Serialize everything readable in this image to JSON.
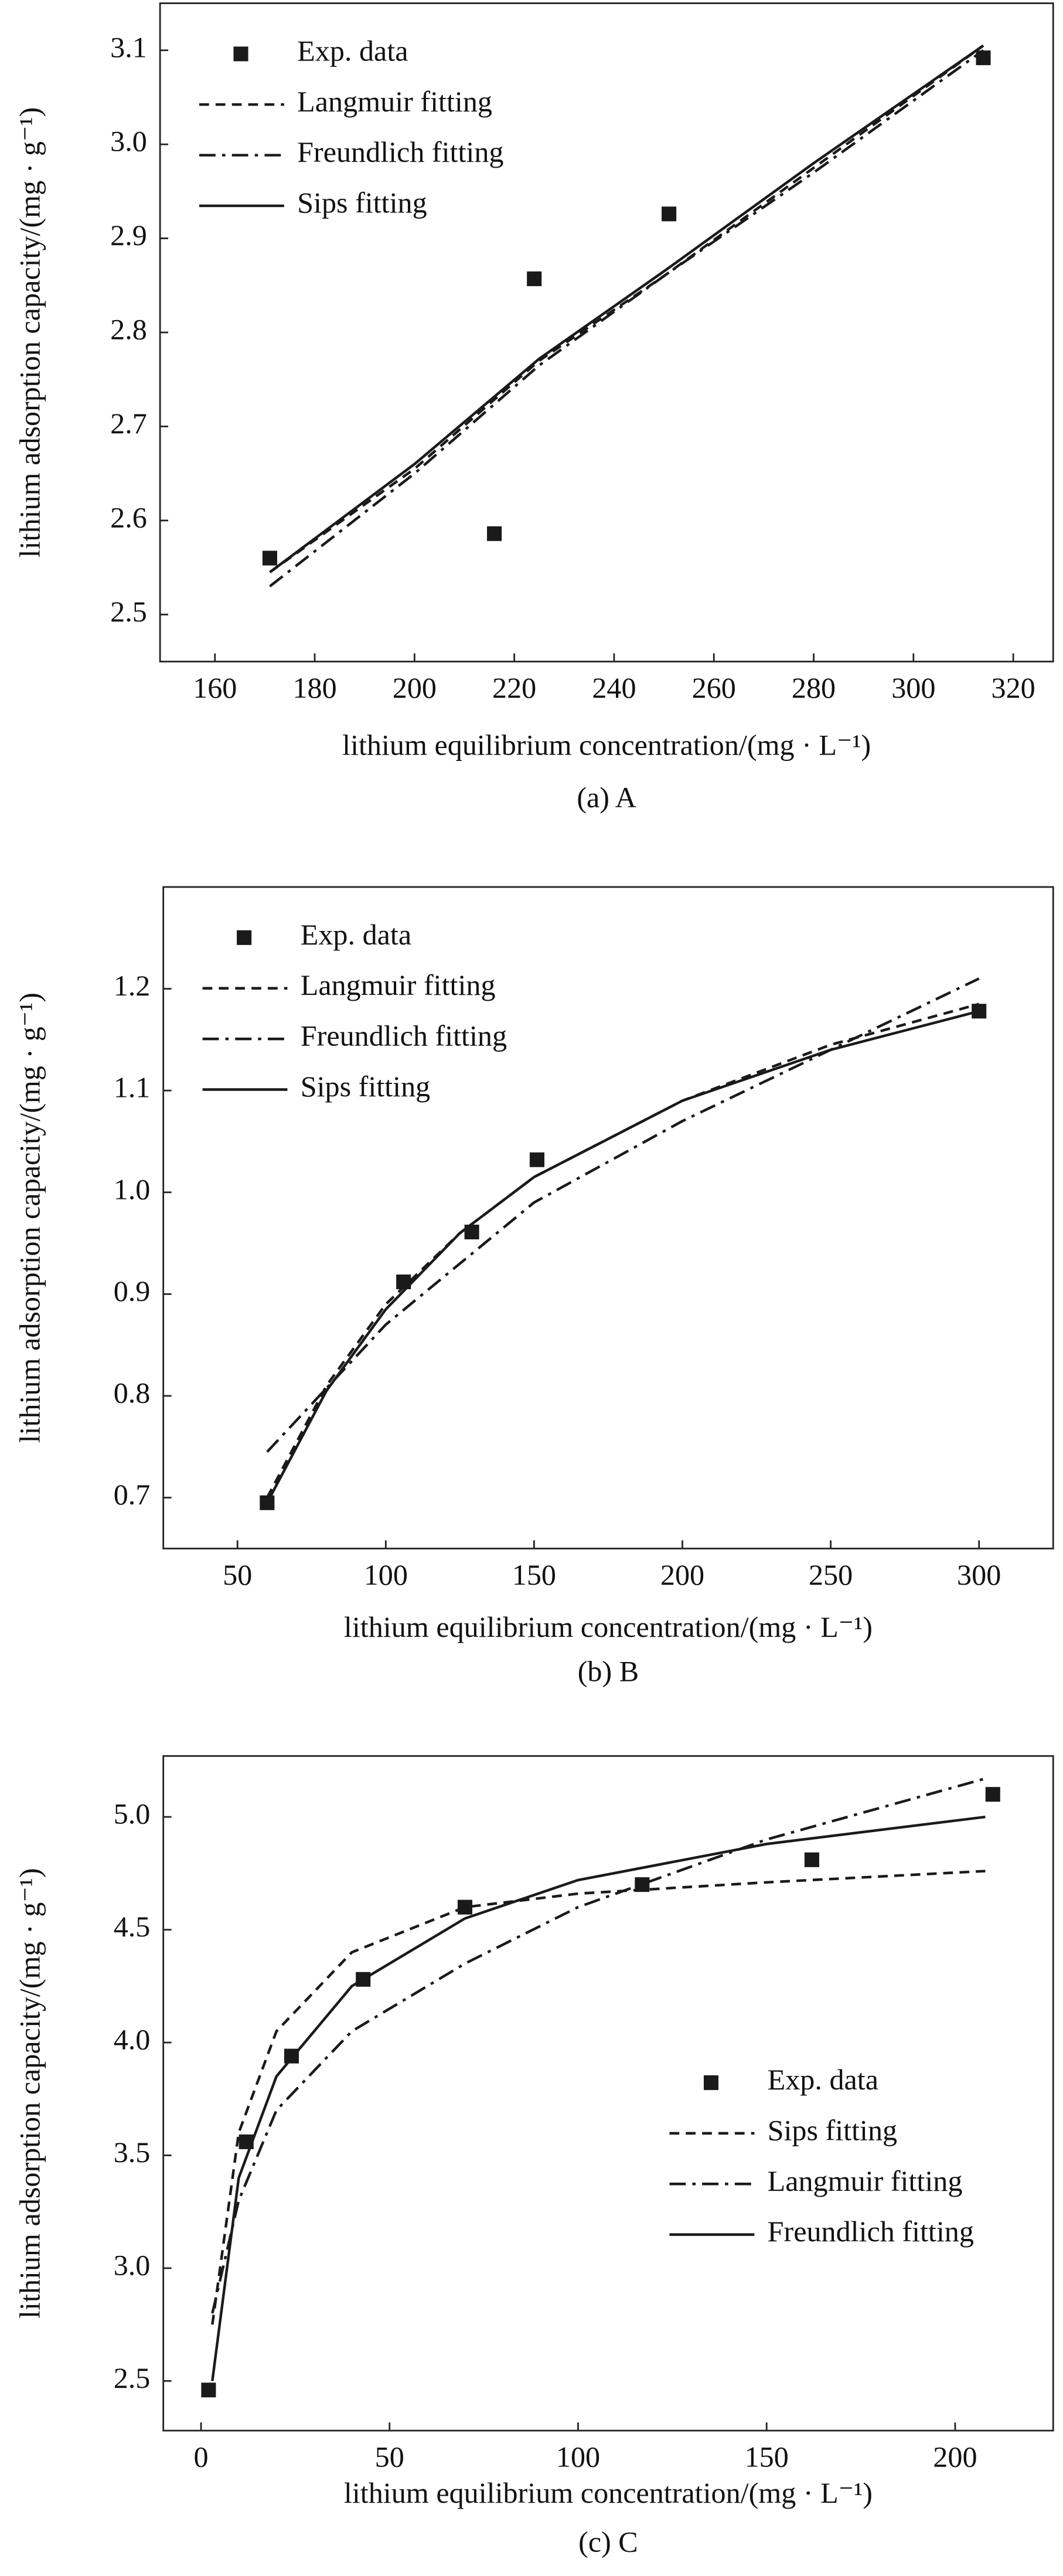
{
  "chart_data": [
    {
      "type": "scatter",
      "caption": "(a) A",
      "xlabel": "lithium equilibrium concentration/(mg · L⁻¹)",
      "ylabel": "lithium adsorption capacity/(mg · g⁻¹)",
      "xlim": [
        149,
        328
      ],
      "ylim": [
        2.45,
        3.15
      ],
      "xticks": [
        160,
        180,
        200,
        220,
        240,
        260,
        280,
        300,
        320
      ],
      "yticks": [
        2.5,
        2.6,
        2.7,
        2.8,
        2.9,
        {
          "value": 3,
          "label": "3.0"
        },
        3.1
      ],
      "legend": "upper left",
      "series": [
        {
          "name": "Exp. data",
          "marker": "square",
          "color": "#1a1a1a",
          "x": [
            171,
            216,
            224,
            251,
            314
          ],
          "values": [
            2.56,
            2.586,
            2.857,
            2.926,
            3.092
          ]
        },
        {
          "name": "Langmuir fitting",
          "dash": "dashed",
          "color": "#1a1a1a",
          "x": [
            171,
            200,
            225,
            250,
            280,
            314
          ],
          "values": [
            2.545,
            2.655,
            2.77,
            2.86,
            2.975,
            3.105
          ]
        },
        {
          "name": "Freundlich fitting",
          "dash": "dashdot",
          "color": "#1a1a1a",
          "x": [
            171,
            200,
            225,
            250,
            280,
            314
          ],
          "values": [
            2.53,
            2.65,
            2.765,
            2.86,
            2.97,
            3.1
          ]
        },
        {
          "name": "Sips fitting",
          "dash": "solid",
          "color": "#1a1a1a",
          "x": [
            171,
            200,
            225,
            250,
            280,
            314
          ],
          "values": [
            2.545,
            2.66,
            2.772,
            2.865,
            2.98,
            3.105
          ]
        }
      ]
    },
    {
      "type": "scatter",
      "caption": "(b) B",
      "xlabel": "lithium equilibrium concentration/(mg · L⁻¹)",
      "ylabel": "lithium adsorption capacity/(mg · g⁻¹)",
      "xlim": [
        25,
        325
      ],
      "ylim": [
        0.65,
        1.3
      ],
      "xticks": [
        50,
        100,
        150,
        200,
        250,
        300
      ],
      "yticks": [
        0.7,
        0.8,
        0.9,
        {
          "value": 1,
          "label": "1.0"
        },
        1.1,
        1.2
      ],
      "legend": "upper left",
      "series": [
        {
          "name": "Exp. data",
          "marker": "square",
          "color": "#1a1a1a",
          "x": [
            60,
            106,
            129,
            151,
            300
          ],
          "values": [
            0.695,
            0.912,
            0.961,
            1.032,
            1.178
          ]
        },
        {
          "name": "Langmuir fitting",
          "dash": "dashed",
          "color": "#1a1a1a",
          "x": [
            60,
            80,
            100,
            125,
            150,
            200,
            250,
            300
          ],
          "values": [
            0.7,
            0.81,
            0.89,
            0.96,
            1.015,
            1.09,
            1.145,
            1.185
          ]
        },
        {
          "name": "Freundlich fitting",
          "dash": "dashdot",
          "color": "#1a1a1a",
          "x": [
            60,
            100,
            150,
            200,
            250,
            300
          ],
          "values": [
            0.745,
            0.87,
            0.99,
            1.07,
            1.14,
            1.21
          ]
        },
        {
          "name": "Sips fitting",
          "dash": "solid",
          "color": "#1a1a1a",
          "x": [
            60,
            80,
            100,
            125,
            150,
            200,
            250,
            300
          ],
          "values": [
            0.695,
            0.805,
            0.885,
            0.96,
            1.015,
            1.09,
            1.14,
            1.178
          ]
        }
      ]
    },
    {
      "type": "scatter",
      "caption": "(c) C",
      "xlabel": "lithium equilibrium concentration/(mg · L⁻¹)",
      "ylabel": "lithium adsorption capacity/(mg · g⁻¹)",
      "xlim": [
        -10,
        226
      ],
      "ylim": [
        2.28,
        5.27
      ],
      "xticks": [
        0,
        50,
        100,
        150,
        200
      ],
      "yticks": [
        2.5,
        {
          "value": 3,
          "label": "3.0"
        },
        3.5,
        {
          "value": 4,
          "label": "4.0"
        },
        4.5,
        {
          "value": 5,
          "label": "5.0"
        }
      ],
      "legend": "center right",
      "series": [
        {
          "name": "Exp. data",
          "marker": "square",
          "color": "#1a1a1a",
          "x": [
            2,
            12,
            24,
            43,
            70,
            117,
            162,
            210
          ],
          "values": [
            2.46,
            3.56,
            3.94,
            4.28,
            4.6,
            4.7,
            4.81,
            5.1
          ]
        },
        {
          "name": "Sips fitting",
          "dash": "dashed",
          "color": "#1a1a1a",
          "x": [
            3,
            10,
            20,
            40,
            70,
            100,
            150,
            208
          ],
          "values": [
            2.75,
            3.6,
            4.05,
            4.4,
            4.6,
            4.66,
            4.71,
            4.76
          ]
        },
        {
          "name": "Langmuir fitting",
          "dash": "dashdot",
          "color": "#1a1a1a",
          "x": [
            3,
            10,
            20,
            40,
            70,
            100,
            150,
            208
          ],
          "values": [
            2.8,
            3.3,
            3.7,
            4.05,
            4.35,
            4.6,
            4.9,
            5.17
          ]
        },
        {
          "name": "Freundlich fitting",
          "dash": "solid",
          "color": "#1a1a1a",
          "x": [
            3,
            10,
            20,
            40,
            70,
            100,
            150,
            208
          ],
          "values": [
            2.5,
            3.4,
            3.85,
            4.25,
            4.55,
            4.72,
            4.88,
            5.0
          ]
        }
      ]
    }
  ]
}
